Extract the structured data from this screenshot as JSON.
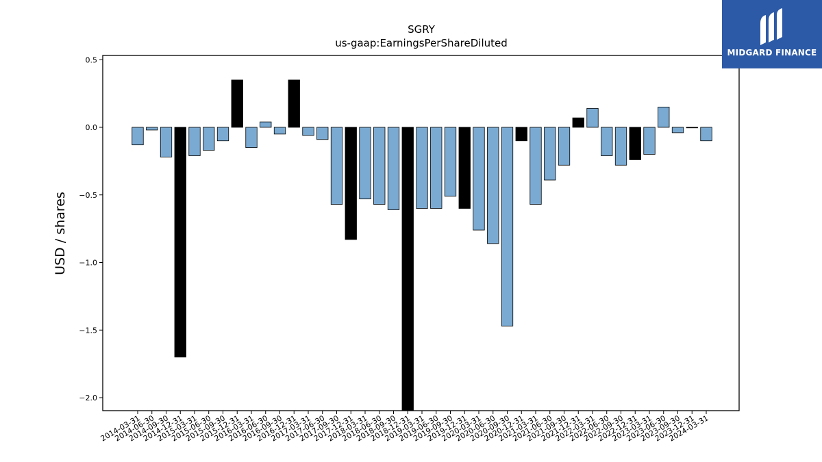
{
  "brand": {
    "name": "MIDGARD FINANCE",
    "bg": "#2c5aa6"
  },
  "chart_data": {
    "type": "bar",
    "title": "SGRY",
    "subtitle": "us-gaap:EarningsPerShareDiluted",
    "ylabel": "USD / shares",
    "xlabel": "",
    "ylim": [
      -2.1,
      0.53
    ],
    "yticks": [
      0.5,
      0.0,
      -0.5,
      -1.0,
      -1.5,
      -2.0
    ],
    "ytick_labels": [
      "0.5",
      "0.0",
      "−0.5",
      "−1.0",
      "−1.5",
      "−2.0"
    ],
    "colors": {
      "quarter": "#7aaad2",
      "annual": "#000000"
    },
    "categories": [
      "2014-03-31",
      "2014-06-30",
      "2014-09-30",
      "2014-12-31",
      "2015-03-31",
      "2015-06-30",
      "2015-09-30",
      "2015-12-31",
      "2016-03-31",
      "2016-06-30",
      "2016-09-30",
      "2016-12-31",
      "2017-03-31",
      "2017-06-30",
      "2017-09-30",
      "2017-12-31",
      "2018-03-31",
      "2018-06-30",
      "2018-09-30",
      "2018-12-31",
      "2019-03-31",
      "2019-06-30",
      "2019-09-30",
      "2019-12-31",
      "2020-03-31",
      "2020-06-30",
      "2020-09-30",
      "2020-12-31",
      "2021-03-31",
      "2021-06-30",
      "2021-09-30",
      "2021-12-31",
      "2022-03-31",
      "2022-06-30",
      "2022-09-30",
      "2022-12-31",
      "2023-03-31",
      "2023-06-30",
      "2023-09-30",
      "2023-12-31",
      "2024-03-31"
    ],
    "values": [
      -0.13,
      -0.02,
      -0.22,
      -1.7,
      -0.21,
      -0.17,
      -0.1,
      0.35,
      -0.15,
      0.04,
      -0.05,
      0.35,
      -0.06,
      -0.09,
      -0.57,
      -0.83,
      -0.53,
      -0.57,
      -0.61,
      -2.2,
      -0.6,
      -0.6,
      -0.51,
      -0.6,
      -0.76,
      -0.86,
      -1.47,
      -0.1,
      -0.57,
      -0.39,
      -0.28,
      0.07,
      0.14,
      -0.21,
      -0.28,
      -0.24,
      -0.2,
      0.15,
      -0.04,
      0.0,
      -0.1
    ],
    "annual": [
      false,
      false,
      false,
      true,
      false,
      false,
      false,
      true,
      false,
      false,
      false,
      true,
      false,
      false,
      false,
      true,
      false,
      false,
      false,
      true,
      false,
      false,
      false,
      true,
      false,
      false,
      false,
      true,
      false,
      false,
      false,
      true,
      false,
      false,
      false,
      true,
      false,
      false,
      false,
      false,
      false
    ]
  }
}
